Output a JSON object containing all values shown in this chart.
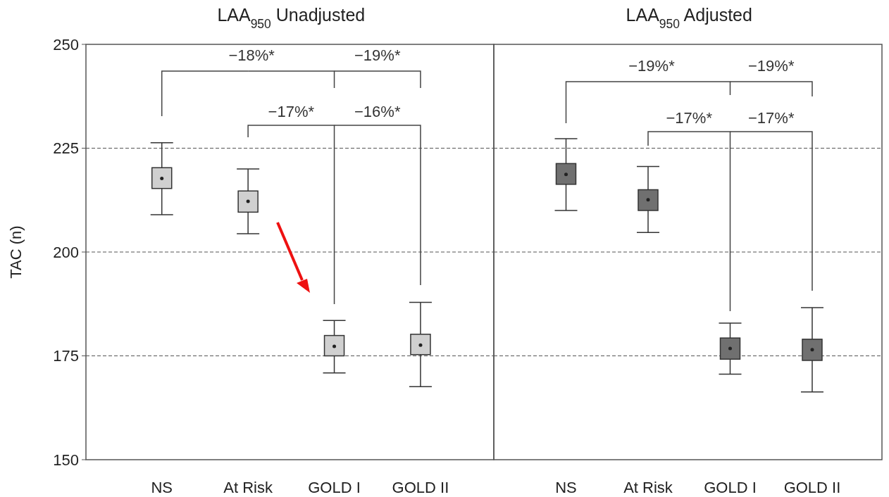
{
  "chart_data": [
    {
      "type": "box",
      "title": "LAA$_{950}$ Unadjusted",
      "ylabel": "TAC (n)",
      "categories": [
        "NS",
        "At Risk",
        "GOLD I",
        "GOLD II"
      ],
      "color": "#d0d0d0",
      "ylim": [
        150,
        250
      ],
      "yticks": [
        150,
        175,
        200,
        225,
        250
      ],
      "grid": "y",
      "line_style": "dashed",
      "boxes": [
        {
          "low": 209.0,
          "q1": 215.3,
          "median": 217.7,
          "q3": 220.3,
          "high": 226.3
        },
        {
          "low": 204.4,
          "q1": 209.6,
          "median": 212.2,
          "q3": 214.7,
          "high": 220.0
        },
        {
          "low": 170.9,
          "q1": 175.0,
          "median": 177.3,
          "q3": 179.9,
          "high": 183.5
        },
        {
          "low": 167.6,
          "q1": 175.3,
          "median": 177.6,
          "q3": 180.2,
          "high": 187.9
        }
      ],
      "annotations": [
        "−18%*",
        "−19%*",
        "−17%*",
        "−16%*"
      ]
    },
    {
      "type": "box",
      "title": "LAA$_{950}$ Adjusted",
      "categories": [
        "NS",
        "At Risk",
        "GOLD I",
        "GOLD II"
      ],
      "color": "#707070",
      "ylim": [
        150,
        250
      ],
      "yticks": [
        150,
        175,
        200,
        225,
        250
      ],
      "grid": "y",
      "line_style": "dashed",
      "tick_labels": "x",
      "boxes": [
        {
          "low": 210.0,
          "q1": 216.3,
          "median": 218.7,
          "q3": 221.3,
          "high": 227.3
        },
        {
          "low": 204.7,
          "q1": 210.0,
          "median": 212.6,
          "q3": 215.0,
          "high": 220.6
        },
        {
          "low": 170.6,
          "q1": 174.2,
          "median": 176.8,
          "q3": 179.3,
          "high": 182.9
        },
        {
          "low": 166.3,
          "q1": 173.9,
          "median": 176.5,
          "q3": 179.0,
          "high": 186.6
        }
      ],
      "annotations": [
        "−19%*",
        "−19%*",
        "−17%*",
        "−17%*"
      ]
    }
  ]
}
